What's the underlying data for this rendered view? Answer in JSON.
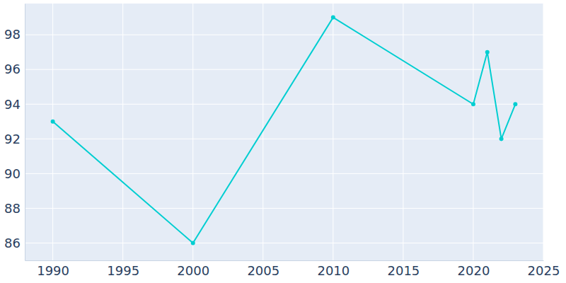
{
  "chart_data": {
    "type": "line",
    "x": [
      1990,
      2000,
      2010,
      2020,
      2021,
      2022,
      2023
    ],
    "values": [
      93,
      86,
      99,
      94,
      97,
      92,
      94
    ],
    "color": "#00ced1",
    "marker": "circle",
    "xlim": [
      1988,
      2025
    ],
    "xticks": [
      1990,
      1995,
      2000,
      2005,
      2010,
      2015,
      2020,
      2025
    ],
    "ylim": [
      85,
      99.8
    ],
    "yticks": [
      86,
      88,
      90,
      92,
      94,
      96,
      98
    ],
    "grid": true
  }
}
